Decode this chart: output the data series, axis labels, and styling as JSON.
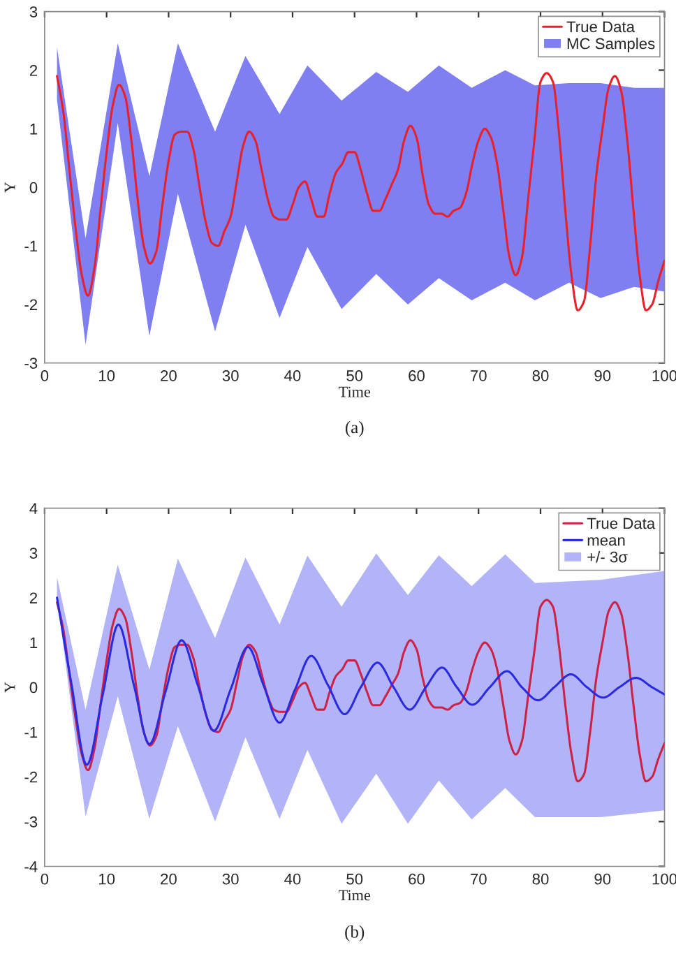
{
  "chart_data": [
    {
      "type": "line",
      "xlabel": "Time",
      "ylabel": "Y",
      "annotations": [
        "(a)"
      ],
      "xlim": [
        0,
        100
      ],
      "xticks": [
        0,
        10,
        20,
        30,
        40,
        50,
        60,
        70,
        80,
        90,
        100
      ],
      "ylim": [
        -3,
        3
      ],
      "yticks": [
        -3,
        -2,
        -1,
        0,
        1,
        2,
        3
      ],
      "legend": "top right",
      "grid": false,
      "series": [
        {
          "name": "MC Samples",
          "type": "area",
          "color": "#7f7ff2",
          "x": [
            2,
            6.6,
            11.8,
            16.9,
            21.5,
            27.5,
            32.4,
            37.9,
            42.4,
            47.9,
            53.5,
            58.6,
            63.6,
            68.9,
            74.3,
            79.1,
            84.6,
            89.7,
            95.1,
            100
          ],
          "values": [
            null,
            null,
            null,
            null,
            null,
            null,
            null,
            null,
            null,
            null,
            null,
            null,
            null,
            null,
            null,
            null,
            null,
            null,
            null,
            null
          ],
          "upper": [
            2.39,
            -0.87,
            2.46,
            0.19,
            2.46,
            0.95,
            2.24,
            1.25,
            2.08,
            1.48,
            1.97,
            1.63,
            2.08,
            1.7,
            2.0,
            1.74,
            1.78,
            1.78,
            1.7,
            1.7
          ],
          "lower": [
            1.5,
            -2.69,
            1.1,
            -2.54,
            -0.11,
            -2.46,
            -0.64,
            -2.23,
            -1.02,
            -2.08,
            -1.48,
            -2.0,
            -1.55,
            -1.93,
            -1.63,
            -1.93,
            -1.63,
            -1.89,
            -1.7,
            -1.78
          ]
        },
        {
          "name": "True Data",
          "color": "#e8202a",
          "x": [
            2,
            3,
            4,
            5,
            6,
            7,
            8,
            9,
            10,
            11,
            12,
            13,
            14,
            15,
            16,
            17,
            18,
            19,
            20,
            21,
            22,
            23,
            24,
            25,
            26,
            27,
            28,
            29,
            30,
            31,
            32,
            33,
            34,
            35,
            36,
            37,
            38,
            39,
            40,
            41,
            42,
            43,
            44,
            45,
            46,
            47,
            48,
            49,
            50,
            51,
            52,
            53,
            54,
            55,
            56,
            57,
            58,
            59,
            60,
            61,
            62,
            63,
            64,
            65,
            66,
            67,
            68,
            69,
            70,
            71,
            72,
            73,
            74,
            75,
            76,
            77,
            78,
            79,
            80,
            81,
            82,
            83,
            84,
            85,
            86,
            87,
            88,
            89,
            90,
            91,
            92,
            93,
            94,
            95,
            96,
            97,
            98,
            99,
            100
          ],
          "values": [
            1.9,
            1.3,
            0.3,
            -0.7,
            -1.5,
            -1.85,
            -1.4,
            -0.4,
            0.6,
            1.4,
            1.75,
            1.55,
            0.8,
            -0.2,
            -1.0,
            -1.3,
            -1.1,
            -0.3,
            0.45,
            0.9,
            0.95,
            0.95,
            0.65,
            0.0,
            -0.6,
            -0.95,
            -1.0,
            -0.75,
            -0.5,
            0.1,
            0.7,
            0.95,
            0.8,
            0.3,
            -0.2,
            -0.5,
            -0.55,
            -0.55,
            -0.3,
            0.0,
            0.1,
            -0.2,
            -0.5,
            -0.5,
            -0.1,
            0.25,
            0.4,
            0.6,
            0.6,
            0.3,
            -0.1,
            -0.4,
            -0.4,
            -0.2,
            0.05,
            0.3,
            0.8,
            1.05,
            0.85,
            0.2,
            -0.3,
            -0.45,
            -0.45,
            -0.5,
            -0.4,
            -0.35,
            -0.1,
            0.4,
            0.8,
            1.0,
            0.85,
            0.4,
            -0.4,
            -1.2,
            -1.5,
            -1.2,
            -0.2,
            0.8,
            1.8,
            1.95,
            1.8,
            0.9,
            -0.4,
            -1.5,
            -2.1,
            -1.95,
            -1.0,
            0.2,
            1.0,
            1.7,
            1.9,
            1.65,
            0.8,
            -0.4,
            -1.5,
            -2.1,
            -2.0,
            -1.6,
            -1.25
          ]
        }
      ]
    },
    {
      "type": "line",
      "xlabel": "Time",
      "ylabel": "Y",
      "annotations": [
        "(b)"
      ],
      "xlim": [
        0,
        100
      ],
      "xticks": [
        0,
        10,
        20,
        30,
        40,
        50,
        60,
        70,
        80,
        90,
        100
      ],
      "ylim": [
        -4,
        4
      ],
      "yticks": [
        -4,
        -3,
        -2,
        -1,
        0,
        1,
        2,
        3,
        4
      ],
      "legend": "top right",
      "grid": false,
      "series": [
        {
          "name": "True Data",
          "color": "#cc2248",
          "x": [
            2,
            3,
            4,
            5,
            6,
            7,
            8,
            9,
            10,
            11,
            12,
            13,
            14,
            15,
            16,
            17,
            18,
            19,
            20,
            21,
            22,
            23,
            24,
            25,
            26,
            27,
            28,
            29,
            30,
            31,
            32,
            33,
            34,
            35,
            36,
            37,
            38,
            39,
            40,
            41,
            42,
            43,
            44,
            45,
            46,
            47,
            48,
            49,
            50,
            51,
            52,
            53,
            54,
            55,
            56,
            57,
            58,
            59,
            60,
            61,
            62,
            63,
            64,
            65,
            66,
            67,
            68,
            69,
            70,
            71,
            72,
            73,
            74,
            75,
            76,
            77,
            78,
            79,
            80,
            81,
            82,
            83,
            84,
            85,
            86,
            87,
            88,
            89,
            90,
            91,
            92,
            93,
            94,
            95,
            96,
            97,
            98,
            99,
            100
          ],
          "values": [
            1.9,
            1.3,
            0.3,
            -0.7,
            -1.5,
            -1.85,
            -1.4,
            -0.4,
            0.6,
            1.4,
            1.75,
            1.55,
            0.8,
            -0.2,
            -1.0,
            -1.3,
            -1.1,
            -0.3,
            0.45,
            0.9,
            0.95,
            0.95,
            0.65,
            0.0,
            -0.6,
            -0.95,
            -1.0,
            -0.75,
            -0.5,
            0.1,
            0.7,
            0.95,
            0.8,
            0.3,
            -0.2,
            -0.5,
            -0.55,
            -0.55,
            -0.3,
            0.0,
            0.1,
            -0.2,
            -0.5,
            -0.5,
            -0.1,
            0.25,
            0.4,
            0.6,
            0.6,
            0.3,
            -0.1,
            -0.4,
            -0.4,
            -0.2,
            0.05,
            0.3,
            0.8,
            1.05,
            0.85,
            0.2,
            -0.3,
            -0.45,
            -0.45,
            -0.5,
            -0.4,
            -0.35,
            -0.1,
            0.4,
            0.8,
            1.0,
            0.85,
            0.4,
            -0.4,
            -1.2,
            -1.5,
            -1.2,
            -0.2,
            0.8,
            1.8,
            1.95,
            1.8,
            0.9,
            -0.4,
            -1.5,
            -2.1,
            -1.95,
            -1.0,
            0.2,
            1.0,
            1.7,
            1.9,
            1.65,
            0.8,
            -0.4,
            -1.5,
            -2.1,
            -2.0,
            -1.6,
            -1.25
          ]
        },
        {
          "name": "mean",
          "color": "#2a2ae0",
          "x": [
            2,
            4.3,
            6.8,
            9.4,
            11.9,
            14.4,
            16.9,
            19.5,
            22.1,
            24.7,
            27.3,
            30,
            32.8,
            35.3,
            37.9,
            40.4,
            43,
            45.7,
            48.4,
            51,
            53.7,
            56.3,
            58.9,
            61.5,
            64.1,
            66.5,
            69,
            71.8,
            74.6,
            77,
            79.6,
            82.2,
            84.9,
            87.5,
            90.1,
            92.7,
            95.4,
            98,
            100
          ],
          "values": [
            2.0,
            0.1,
            -1.73,
            -0.15,
            1.4,
            0.05,
            -1.27,
            -0.1,
            1.05,
            0.05,
            -0.97,
            -0.05,
            0.9,
            0.05,
            -0.79,
            -0.05,
            0.7,
            0.05,
            -0.6,
            0.0,
            0.55,
            0.0,
            -0.5,
            0.0,
            0.44,
            0.0,
            -0.39,
            0.0,
            0.36,
            0.0,
            -0.29,
            0.0,
            0.29,
            0.0,
            -0.23,
            0.0,
            0.21,
            0.0,
            -0.16
          ]
        },
        {
          "name": "+/- 3σ",
          "type": "area",
          "color": "#b3b3f8",
          "x": [
            2,
            6.6,
            11.8,
            16.9,
            21.5,
            27.5,
            32.4,
            37.9,
            42.4,
            47.9,
            53.5,
            58.6,
            63.6,
            68.9,
            74.3,
            79.1,
            84.6,
            89.7,
            95.1,
            100
          ],
          "values": [
            null,
            null,
            null,
            null,
            null,
            null,
            null,
            null,
            null,
            null,
            null,
            null,
            null,
            null,
            null,
            null,
            null,
            null,
            null,
            null
          ],
          "upper": [
            2.46,
            -0.5,
            2.74,
            0.39,
            2.87,
            1.1,
            2.9,
            1.4,
            2.94,
            1.8,
            2.99,
            2.06,
            2.95,
            2.26,
            2.97,
            2.33,
            null,
            2.4,
            null,
            2.6
          ],
          "lower": [
            2.0,
            -2.89,
            -0.2,
            -2.94,
            -0.87,
            -3.0,
            -1.12,
            -2.94,
            -1.4,
            -3.05,
            -1.93,
            -3.05,
            -2.08,
            -2.95,
            -2.25,
            -2.9,
            null,
            -2.9,
            null,
            -2.75
          ]
        }
      ]
    }
  ]
}
